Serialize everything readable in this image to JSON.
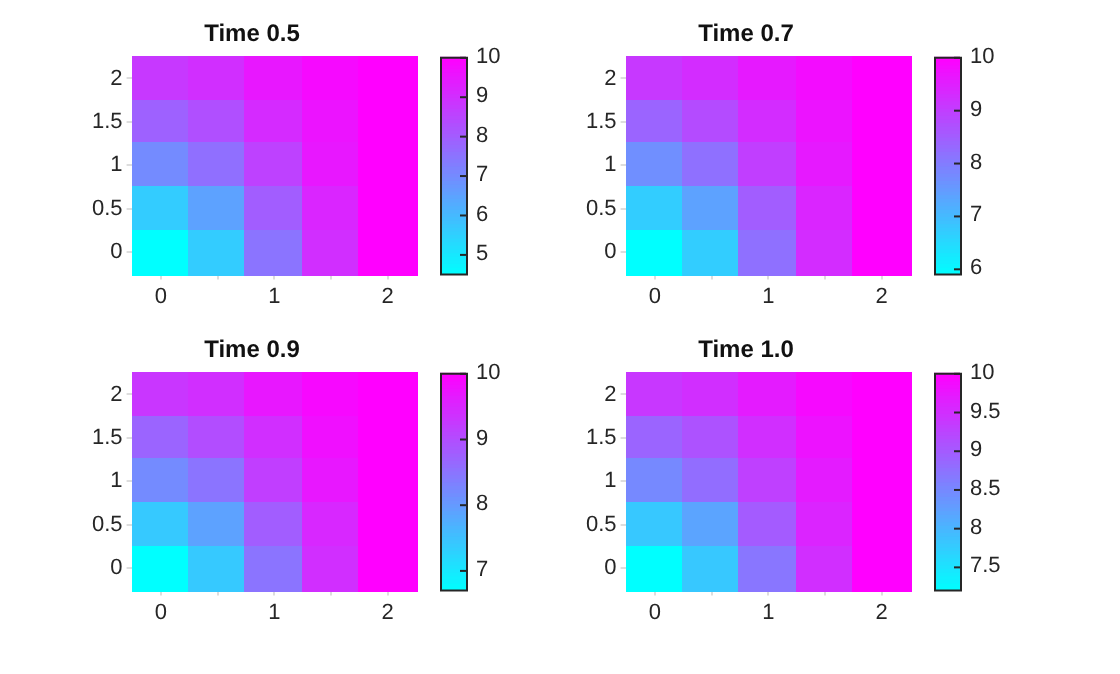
{
  "chart_data": [
    {
      "type": "heatmap",
      "title": "Time 0.5",
      "categories": [
        "0",
        null,
        "1",
        null,
        "2"
      ],
      "y_categories": [
        "2",
        "1.5",
        "1",
        "0.5",
        "0"
      ],
      "clim": [
        4.5,
        10
      ],
      "cticks": [
        5,
        6,
        7,
        8,
        9,
        10
      ],
      "cells": [
        [
          8.8,
          9.0,
          9.5,
          9.8,
          10
        ],
        [
          7.9,
          8.3,
          9.1,
          9.6,
          10
        ],
        [
          7.0,
          7.6,
          8.6,
          9.5,
          10
        ],
        [
          5.6,
          6.5,
          8.0,
          9.2,
          10
        ],
        [
          4.5,
          5.6,
          7.5,
          9.0,
          10
        ]
      ]
    },
    {
      "type": "heatmap",
      "title": "Time 0.7",
      "categories": [
        "0",
        null,
        "1",
        null,
        "2"
      ],
      "y_categories": [
        "2",
        "1.5",
        "1",
        "0.5",
        "0"
      ],
      "clim": [
        5.9,
        10
      ],
      "cticks": [
        6,
        7,
        8,
        9,
        10
      ],
      "cells": [
        [
          9.1,
          9.3,
          9.6,
          9.8,
          10
        ],
        [
          8.4,
          8.8,
          9.3,
          9.7,
          10
        ],
        [
          7.7,
          8.2,
          9.0,
          9.6,
          10
        ],
        [
          6.7,
          7.4,
          8.5,
          9.4,
          10
        ],
        [
          5.9,
          6.7,
          8.2,
          9.3,
          10
        ]
      ]
    },
    {
      "type": "heatmap",
      "title": "Time 0.9",
      "categories": [
        "0",
        null,
        "1",
        null,
        "2"
      ],
      "y_categories": [
        "2",
        "1.5",
        "1",
        "0.5",
        "0"
      ],
      "clim": [
        6.7,
        10
      ],
      "cticks": [
        7,
        8,
        9,
        10
      ],
      "cells": [
        [
          9.3,
          9.4,
          9.7,
          9.9,
          10
        ],
        [
          8.7,
          9.0,
          9.4,
          9.8,
          10
        ],
        [
          8.2,
          8.5,
          9.2,
          9.7,
          10
        ],
        [
          7.4,
          7.9,
          8.8,
          9.5,
          10
        ],
        [
          6.7,
          7.4,
          8.5,
          9.4,
          10
        ]
      ]
    },
    {
      "type": "heatmap",
      "title": "Time 1.0",
      "categories": [
        "0",
        null,
        "1",
        null,
        "2"
      ],
      "y_categories": [
        "2",
        "1.5",
        "1",
        "0.5",
        "0"
      ],
      "clim": [
        7.2,
        10
      ],
      "cticks": [
        7.5,
        8,
        8.5,
        9,
        9.5,
        10
      ],
      "cells": [
        [
          9.4,
          9.5,
          9.7,
          9.9,
          10
        ],
        [
          8.9,
          9.1,
          9.5,
          9.8,
          10
        ],
        [
          8.5,
          8.8,
          9.3,
          9.7,
          10
        ],
        [
          7.8,
          8.2,
          9.0,
          9.6,
          10
        ],
        [
          7.2,
          7.8,
          8.7,
          9.5,
          10
        ]
      ]
    }
  ]
}
